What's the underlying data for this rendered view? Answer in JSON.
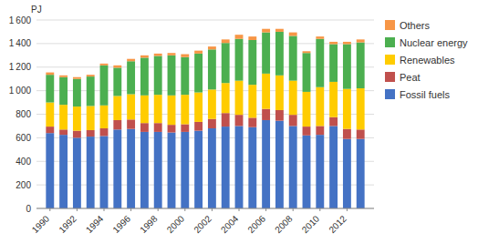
{
  "chart_data": {
    "type": "bar",
    "stacked": true,
    "y_label": "PJ",
    "x": [
      1990,
      1991,
      1992,
      1993,
      1994,
      1995,
      1996,
      1997,
      1998,
      1999,
      2000,
      2001,
      2002,
      2003,
      2004,
      2005,
      2006,
      2007,
      2008,
      2009,
      2010,
      2011,
      2012,
      2013
    ],
    "xlim": [
      1989,
      2014
    ],
    "xticks": [
      1990,
      1992,
      1994,
      1996,
      1998,
      2000,
      2002,
      2004,
      2006,
      2008,
      2010,
      2012
    ],
    "ylim": [
      0,
      1600
    ],
    "yticks": [
      0,
      200,
      400,
      600,
      800,
      {
        "value": 1000,
        "label": "1 000"
      },
      {
        "value": 1200,
        "label": "1 200"
      },
      {
        "value": 1400,
        "label": "1 400"
      },
      {
        "value": 1600,
        "label": "1 600"
      }
    ],
    "grid": true,
    "legend": "right",
    "series": [
      {
        "name": "Fossil fuels",
        "color": "#4472C4",
        "values": [
          640,
          625,
          600,
          610,
          615,
          670,
          675,
          650,
          650,
          645,
          650,
          660,
          680,
          695,
          700,
          690,
          750,
          745,
          700,
          620,
          625,
          700,
          590,
          590
        ]
      },
      {
        "name": "Peat",
        "color": "#C0504D",
        "values": [
          55,
          45,
          60,
          55,
          65,
          80,
          80,
          75,
          75,
          65,
          65,
          75,
          80,
          115,
          95,
          80,
          95,
          90,
          95,
          75,
          75,
          75,
          85,
          80
        ]
      },
      {
        "name": "Renewables",
        "color": "#FFCC00",
        "values": [
          205,
          210,
          205,
          205,
          195,
          205,
          215,
          235,
          240,
          250,
          250,
          250,
          250,
          255,
          290,
          280,
          300,
          295,
          290,
          295,
          330,
          300,
          340,
          350
        ]
      },
      {
        "name": "Nuclear energy",
        "color": "#4CAF50",
        "values": [
          235,
          235,
          235,
          250,
          340,
          240,
          280,
          320,
          330,
          340,
          320,
          330,
          340,
          340,
          355,
          380,
          350,
          370,
          380,
          330,
          410,
          320,
          380,
          390
        ]
      },
      {
        "name": "Others",
        "color": "#F79646",
        "values": [
          20,
          15,
          15,
          15,
          15,
          20,
          20,
          20,
          20,
          20,
          25,
          25,
          25,
          30,
          35,
          30,
          30,
          25,
          30,
          15,
          20,
          20,
          20,
          25
        ]
      }
    ]
  }
}
